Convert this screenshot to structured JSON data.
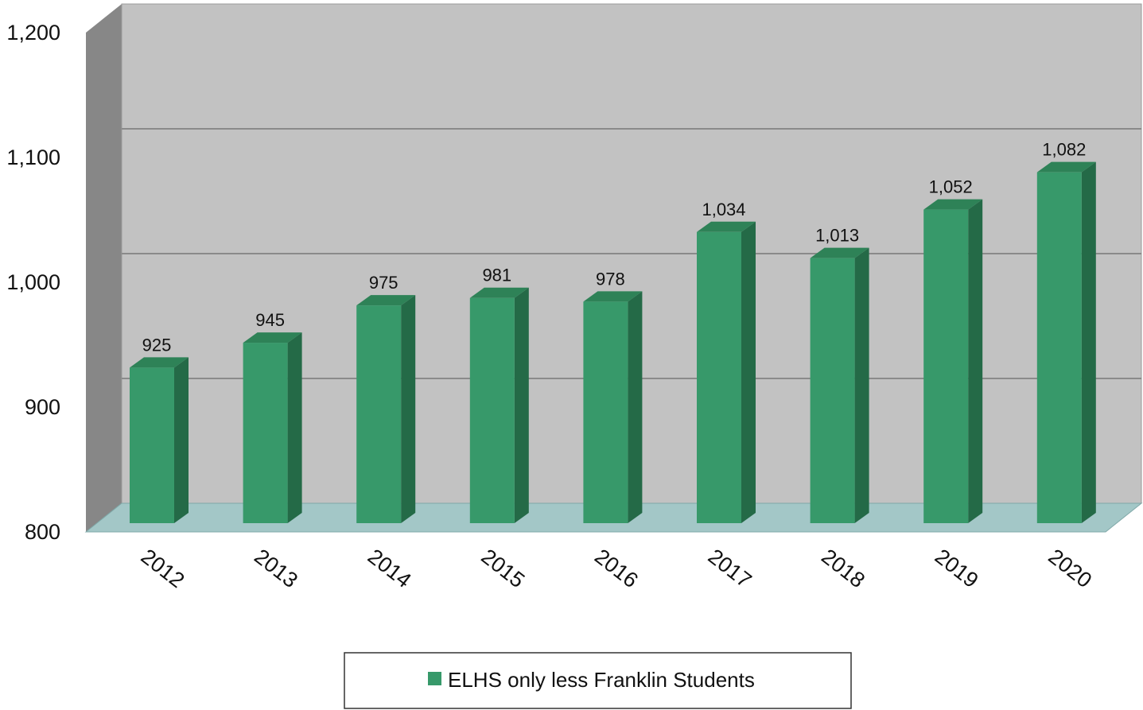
{
  "chart_data": {
    "type": "bar",
    "categories": [
      "2012",
      "2013",
      "2014",
      "2015",
      "2016",
      "2017",
      "2018",
      "2019",
      "2020"
    ],
    "series": [
      {
        "name": "ELHS only less Franklin Students",
        "values": [
          925,
          945,
          975,
          981,
          978,
          1034,
          1013,
          1052,
          1082
        ]
      }
    ],
    "data_labels": [
      "925",
      "945",
      "975",
      "981",
      "978",
      "1,034",
      "1,013",
      "1,052",
      "1,082"
    ],
    "y_ticks": [
      "800",
      "900",
      "1,000",
      "1,100",
      "1,200"
    ],
    "y_tick_values": [
      800,
      900,
      1000,
      1100,
      1200
    ],
    "ylim": [
      800,
      1200
    ],
    "title": "",
    "xlabel": "",
    "ylabel": "",
    "grid": true,
    "legend_position": "bottom",
    "style": "3d-column",
    "colors": {
      "bar_front": "#37996a",
      "bar_side": "#246a47",
      "bar_top": "#2e8257",
      "back_wall": "#c2c2c2",
      "side_wall": "#878787",
      "floor": "#a3c7c7",
      "gridline": "#8a8a8a"
    }
  },
  "legend": {
    "label": "ELHS only less Franklin Students"
  }
}
